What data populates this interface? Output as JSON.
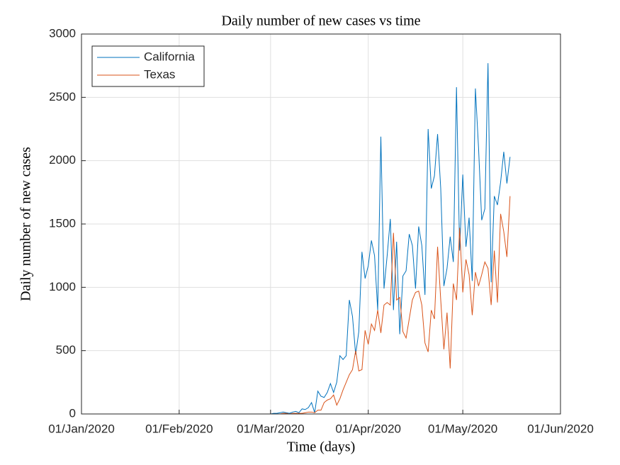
{
  "chart_data": {
    "type": "line",
    "title": "Daily number of new cases vs time",
    "xlabel": "Time (days)",
    "ylabel": "Daily number of new cases",
    "x": [
      "2020-01-25",
      "2020-01-26",
      "2020-01-27",
      "2020-01-28",
      "2020-01-29",
      "2020-01-30",
      "2020-01-31",
      "2020-02-01",
      "2020-02-02",
      "2020-02-03",
      "2020-02-04",
      "2020-02-05",
      "2020-02-06",
      "2020-02-07",
      "2020-02-08",
      "2020-02-09",
      "2020-02-10",
      "2020-02-11",
      "2020-02-12",
      "2020-02-13",
      "2020-02-14",
      "2020-02-15",
      "2020-02-16",
      "2020-02-17",
      "2020-02-18",
      "2020-02-19",
      "2020-02-20",
      "2020-02-21",
      "2020-02-22",
      "2020-02-23",
      "2020-02-24",
      "2020-02-25",
      "2020-02-26",
      "2020-02-27",
      "2020-02-28",
      "2020-02-29",
      "2020-03-01",
      "2020-03-02",
      "2020-03-03",
      "2020-03-04",
      "2020-03-05",
      "2020-03-06",
      "2020-03-07",
      "2020-03-08",
      "2020-03-09",
      "2020-03-10",
      "2020-03-11",
      "2020-03-12",
      "2020-03-13",
      "2020-03-14",
      "2020-03-15",
      "2020-03-16",
      "2020-03-17",
      "2020-03-18",
      "2020-03-19",
      "2020-03-20",
      "2020-03-21",
      "2020-03-22",
      "2020-03-23",
      "2020-03-24",
      "2020-03-25",
      "2020-03-26",
      "2020-03-27",
      "2020-03-28",
      "2020-03-29",
      "2020-03-30",
      "2020-03-31",
      "2020-04-01",
      "2020-04-02",
      "2020-04-03",
      "2020-04-04",
      "2020-04-05",
      "2020-04-06",
      "2020-04-07",
      "2020-04-08",
      "2020-04-09",
      "2020-04-10",
      "2020-04-11",
      "2020-04-12",
      "2020-04-13",
      "2020-04-14",
      "2020-04-15",
      "2020-04-16",
      "2020-04-17",
      "2020-04-18",
      "2020-04-19",
      "2020-04-20",
      "2020-04-21",
      "2020-04-22",
      "2020-04-23",
      "2020-04-24",
      "2020-04-25",
      "2020-04-26",
      "2020-04-27",
      "2020-04-28",
      "2020-04-29",
      "2020-04-30",
      "2020-05-01",
      "2020-05-02",
      "2020-05-03",
      "2020-05-04",
      "2020-05-05",
      "2020-05-06",
      "2020-05-07",
      "2020-05-08",
      "2020-05-09",
      "2020-05-10",
      "2020-05-11",
      "2020-05-12",
      "2020-05-13",
      "2020-05-14",
      "2020-05-15",
      "2020-05-16"
    ],
    "series": [
      {
        "name": "California",
        "color": "#0072BD",
        "values": [
          0,
          0,
          0,
          0,
          0,
          0,
          0,
          0,
          0,
          0,
          0,
          0,
          0,
          0,
          0,
          0,
          0,
          0,
          0,
          0,
          0,
          0,
          0,
          0,
          0,
          0,
          0,
          0,
          0,
          0,
          0,
          0,
          0,
          0,
          0,
          0,
          0,
          5,
          5,
          10,
          15,
          10,
          5,
          15,
          20,
          10,
          40,
          35,
          50,
          90,
          10,
          180,
          140,
          130,
          170,
          240,
          170,
          250,
          460,
          430,
          460,
          900,
          770,
          470,
          650,
          1280,
          1070,
          1170,
          1370,
          1250,
          820,
          2190,
          990,
          1250,
          1540,
          820,
          1360,
          630,
          1090,
          1130,
          1420,
          1330,
          990,
          1480,
          1330,
          940,
          2250,
          1780,
          1880,
          2210,
          1780,
          1010,
          1150,
          1400,
          1200,
          2580,
          1290,
          1890,
          1320,
          1550,
          1050,
          2570,
          2100,
          1530,
          1620,
          2770,
          1040,
          1720,
          1650,
          1830,
          2070,
          1820,
          2030
        ]
      },
      {
        "name": "Texas",
        "color": "#D95319",
        "values": [
          0,
          0,
          0,
          0,
          0,
          0,
          0,
          0,
          0,
          0,
          0,
          0,
          0,
          0,
          0,
          0,
          0,
          0,
          0,
          0,
          0,
          0,
          0,
          0,
          0,
          0,
          0,
          0,
          0,
          0,
          0,
          0,
          0,
          0,
          0,
          0,
          0,
          0,
          0,
          0,
          5,
          5,
          0,
          5,
          5,
          5,
          5,
          10,
          15,
          15,
          10,
          30,
          30,
          90,
          110,
          120,
          150,
          70,
          120,
          190,
          250,
          310,
          350,
          500,
          340,
          350,
          660,
          550,
          710,
          660,
          820,
          640,
          860,
          880,
          860,
          1430,
          900,
          920,
          650,
          600,
          750,
          900,
          960,
          970,
          860,
          560,
          490,
          820,
          750,
          1320,
          900,
          510,
          800,
          360,
          1030,
          900,
          1470,
          960,
          1220,
          1100,
          780,
          1120,
          1010,
          1100,
          1200,
          1150,
          860,
          1290,
          880,
          1580,
          1440,
          1240,
          1720
        ]
      }
    ],
    "xlim": [
      "2020-01-01",
      "2020-06-01"
    ],
    "xticks": [
      {
        "value": "2020-01-01",
        "label": "01/Jan/2020"
      },
      {
        "value": "2020-02-01",
        "label": "01/Feb/2020"
      },
      {
        "value": "2020-03-01",
        "label": "01/Mar/2020"
      },
      {
        "value": "2020-04-01",
        "label": "01/Apr/2020"
      },
      {
        "value": "2020-05-01",
        "label": "01/May/2020"
      },
      {
        "value": "2020-06-01",
        "label": "01/Jun/2020"
      }
    ],
    "ylim": [
      0,
      3000
    ],
    "yticks": [
      0,
      500,
      1000,
      1500,
      2000,
      2500,
      3000
    ],
    "grid": true,
    "legend": "northwest"
  }
}
